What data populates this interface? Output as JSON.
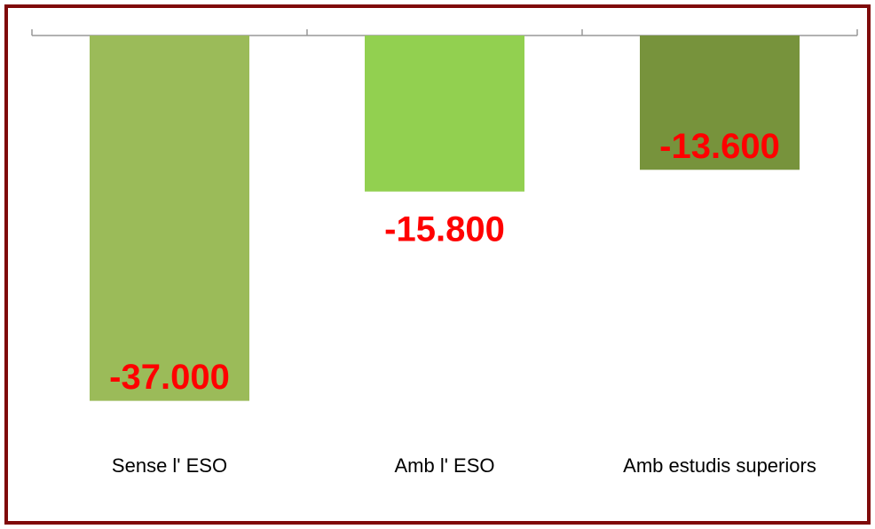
{
  "chart_data": {
    "type": "bar",
    "categories": [
      "Sense l' ESO",
      "Amb l' ESO",
      "Amb estudis superiors"
    ],
    "values": [
      -37000,
      -15800,
      -13600
    ],
    "value_labels": [
      "-37.000",
      "-15.800",
      "-13.600"
    ],
    "colors": [
      "#9bbb59",
      "#92d050",
      "#77933c"
    ],
    "ylim": [
      -40000,
      0
    ]
  }
}
